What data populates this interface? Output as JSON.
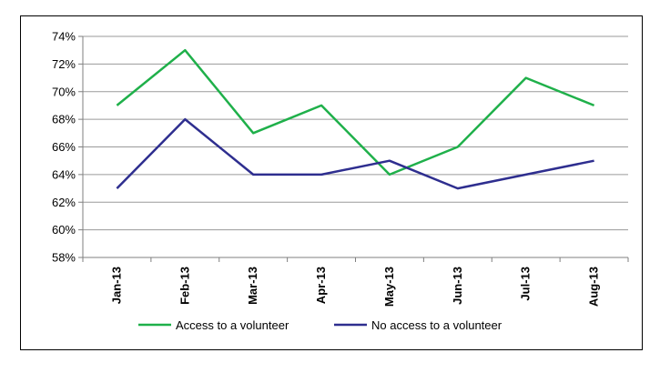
{
  "chart_data": {
    "type": "line",
    "categories": [
      "Jan-13",
      "Feb-13",
      "Mar-13",
      "Apr-13",
      "May-13",
      "Jun-13",
      "Jul-13",
      "Aug-13"
    ],
    "series": [
      {
        "name": "Access to a volunteer",
        "values": [
          69,
          73,
          67,
          69,
          64,
          66,
          71,
          69
        ],
        "color": "#1fb04a"
      },
      {
        "name": "No access to a volunteer",
        "values": [
          63,
          68,
          64,
          64,
          65,
          63,
          64,
          65
        ],
        "color": "#2e2e8f"
      }
    ],
    "y_ticks": [
      "58%",
      "60%",
      "62%",
      "64%",
      "66%",
      "68%",
      "70%",
      "72%",
      "74%"
    ],
    "ylim": [
      58,
      74
    ],
    "y_unit": "%",
    "grid": true,
    "legend_position": "bottom",
    "colors": {
      "grid": "#9a9a9a",
      "axis": "#7f7f7f",
      "frame": "#000000"
    }
  }
}
